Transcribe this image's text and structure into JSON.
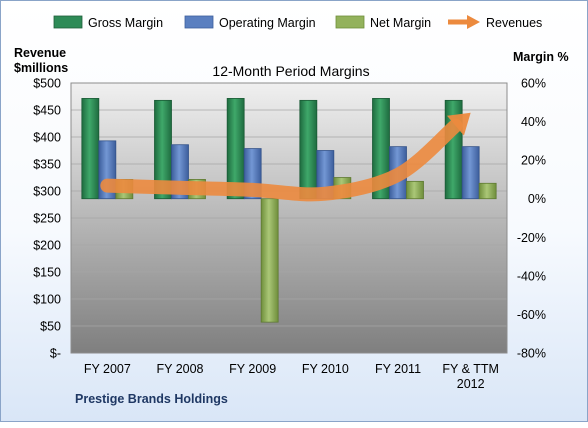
{
  "chart_data": {
    "type": "bar",
    "title": "12-Month Period Margins",
    "company": "Prestige Brands Holdings",
    "left_axis": {
      "title_line1": "Revenue",
      "title_line2": "$millions",
      "range": [
        0,
        500
      ],
      "ticks": [
        "$-",
        "$50",
        "$100",
        "$150",
        "$200",
        "$250",
        "$300",
        "$350",
        "$400",
        "$450",
        "$500"
      ]
    },
    "right_axis": {
      "title": "Margin %",
      "range": [
        -80,
        60
      ],
      "ticks": [
        "-80%",
        "-60%",
        "-40%",
        "-20%",
        "0%",
        "20%",
        "40%",
        "60%"
      ]
    },
    "categories": [
      [
        "FY 2007"
      ],
      [
        "FY 2008"
      ],
      [
        "FY 2009"
      ],
      [
        "FY 2010"
      ],
      [
        "FY 2011"
      ],
      [
        "FY & TTM",
        "2012"
      ]
    ],
    "legend_position": "top",
    "series": [
      {
        "name": "Gross Margin",
        "axis": "right",
        "kind": "bar",
        "color": "#2e8b57",
        "values": [
          52,
          51,
          52,
          51,
          52,
          51
        ]
      },
      {
        "name": "Operating Margin",
        "axis": "right",
        "kind": "bar",
        "color": "#5a7fc0",
        "values": [
          30,
          28,
          26,
          25,
          27,
          27
        ]
      },
      {
        "name": "Net Margin",
        "axis": "right",
        "kind": "bar",
        "color": "#93b25c",
        "values": [
          10,
          10,
          -64,
          11,
          9,
          8
        ]
      },
      {
        "name": "Revenues",
        "axis": "left",
        "kind": "line",
        "color": "#ec8a3e",
        "values": [
          310,
          306,
          302,
          295,
          330,
          445
        ]
      }
    ]
  }
}
